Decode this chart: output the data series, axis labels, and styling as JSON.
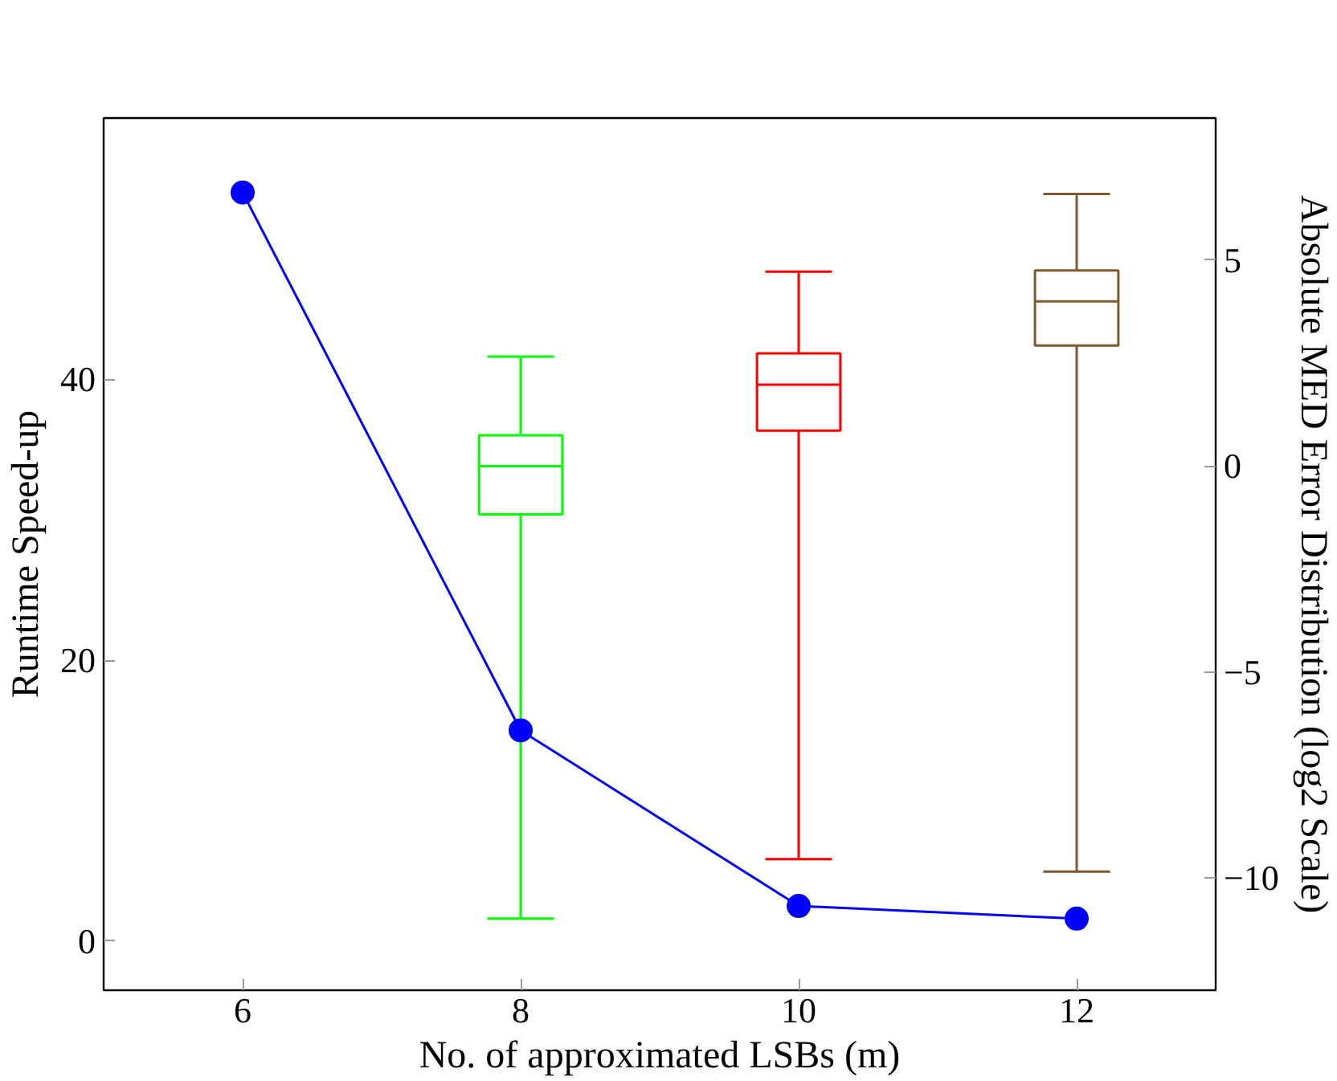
{
  "chart_data": {
    "type": "line",
    "xlabel": "No. of approximated LSBs (m)",
    "ylabel": "Runtime Speed-up",
    "y2label": "Absolute MED Error Distribution (log2 Scale)",
    "xlim": [
      5,
      13
    ],
    "xticks": [
      6,
      8,
      10,
      12
    ],
    "ylim": [
      -3.5,
      58.6
    ],
    "yticks": [
      0,
      20,
      40
    ],
    "y2lim": [
      -12.72,
      8.45
    ],
    "y2ticks": [
      {
        "value": -10,
        "label": "−10"
      },
      {
        "value": -5,
        "label": "−5"
      },
      0,
      5
    ],
    "grid": false,
    "series": [
      {
        "color": "#0000ff",
        "marker": "circle",
        "line_style": "solid",
        "x": [
          6,
          8,
          10,
          12
        ],
        "values": [
          53.3,
          15.0,
          2.5,
          1.6
        ]
      },
      {
        "type": "box",
        "axis": "y2",
        "color": "#00ff00",
        "x": [
          8
        ],
        "boxes": [
          {
            "low": -10.98,
            "q1": -1.17,
            "median": 0.0,
            "q3": 0.75,
            "high": 2.66
          }
        ]
      },
      {
        "type": "box",
        "axis": "y2",
        "color": "#ff0000",
        "x": [
          10
        ],
        "boxes": [
          {
            "low": -9.54,
            "q1": 0.86,
            "median": 1.98,
            "q3": 2.74,
            "high": 4.72
          }
        ]
      },
      {
        "type": "box",
        "axis": "y2",
        "color": "#80582e",
        "x": [
          12
        ],
        "boxes": [
          {
            "low": -9.84,
            "q1": 2.93,
            "median": 4.0,
            "q3": 4.75,
            "high": 6.61
          }
        ]
      }
    ]
  }
}
